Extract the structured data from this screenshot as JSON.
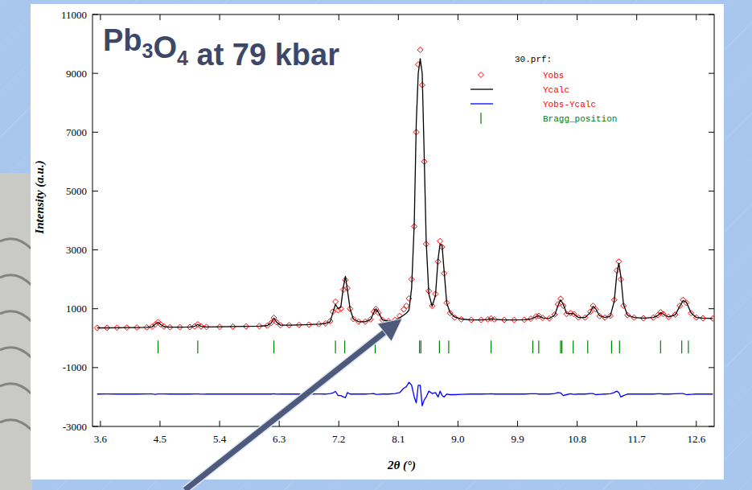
{
  "chart_data": {
    "type": "scatter",
    "title": "Pb3O4 at 79 kbar",
    "x_label": "2θ (°)",
    "y_label": "Intensity (a.u.)",
    "legend_title": "30.prf:",
    "legend": "top-right",
    "grid": false,
    "xlim": [
      3.48,
      12.87
    ],
    "ylim": [
      -3000,
      11000
    ],
    "xticks": [
      3.6,
      4.5,
      5.4,
      6.3,
      7.2,
      8.1,
      {
        "value": 9,
        "label": "9.0"
      },
      9.9,
      10.8,
      11.7,
      12.6
    ],
    "yticks": [
      -3000,
      -1000,
      1000,
      3000,
      5000,
      7000,
      9000,
      11000
    ],
    "x": [
      3.55,
      3.7,
      3.85,
      4.0,
      4.15,
      4.3,
      4.38,
      4.43,
      4.47,
      4.51,
      4.56,
      4.65,
      4.8,
      4.95,
      5.02,
      5.07,
      5.12,
      5.2,
      5.4,
      5.6,
      5.8,
      6.0,
      6.12,
      6.18,
      6.22,
      6.26,
      6.32,
      6.45,
      6.6,
      6.75,
      6.9,
      7.0,
      7.07,
      7.11,
      7.15,
      7.19,
      7.23,
      7.27,
      7.3,
      7.33,
      7.37,
      7.42,
      7.5,
      7.6,
      7.68,
      7.73,
      7.76,
      7.8,
      7.86,
      7.95,
      8.05,
      8.12,
      8.18,
      8.22,
      8.26,
      8.3,
      8.34,
      8.37,
      8.4,
      8.43,
      8.46,
      8.49,
      8.52,
      8.56,
      8.61,
      8.66,
      8.7,
      8.73,
      8.76,
      8.79,
      8.83,
      8.88,
      8.95,
      9.05,
      9.2,
      9.35,
      9.45,
      9.5,
      9.55,
      9.7,
      9.85,
      10.0,
      10.1,
      10.18,
      10.22,
      10.28,
      10.38,
      10.46,
      10.51,
      10.55,
      10.59,
      10.64,
      10.7,
      10.75,
      10.82,
      10.92,
      11.0,
      11.04,
      11.08,
      11.14,
      11.22,
      11.3,
      11.36,
      11.4,
      11.43,
      11.46,
      11.5,
      11.56,
      11.66,
      11.8,
      11.95,
      12.02,
      12.06,
      12.1,
      12.18,
      12.28,
      12.35,
      12.4,
      12.45,
      12.52,
      12.6,
      12.7,
      12.85
    ],
    "series": [
      {
        "name": "Yobs",
        "type": "scatter",
        "marker": "diamond",
        "color": "#ff0000",
        "values": [
          350,
          352,
          355,
          360,
          362,
          368,
          390,
          470,
          545,
          470,
          395,
          372,
          375,
          378,
          400,
          470,
          400,
          382,
          386,
          392,
          400,
          410,
          425,
          520,
          690,
          540,
          440,
          440,
          450,
          460,
          480,
          500,
          580,
          900,
          1240,
          950,
          1000,
          1650,
          1980,
          1700,
          1000,
          650,
          560,
          560,
          640,
          900,
          990,
          860,
          620,
          580,
          620,
          750,
          980,
          1100,
          1350,
          2000,
          3800,
          7000,
          9300,
          9800,
          8600,
          6000,
          3200,
          1600,
          1100,
          1500,
          2600,
          3300,
          3100,
          2200,
          1200,
          850,
          700,
          640,
          620,
          620,
          640,
          670,
          640,
          620,
          620,
          625,
          660,
          740,
          760,
          690,
          670,
          800,
          1150,
          1340,
          1100,
          820,
          850,
          820,
          700,
          700,
          900,
          1100,
          980,
          750,
          700,
          760,
          1300,
          2300,
          2600,
          2000,
          1100,
          780,
          700,
          680,
          700,
          780,
          880,
          820,
          720,
          800,
          1100,
          1300,
          1200,
          850,
          700,
          680,
          670
        ]
      },
      {
        "name": "Ycalc",
        "type": "line",
        "color": "#000000",
        "values": [
          350,
          350,
          355,
          360,
          362,
          366,
          385,
          480,
          540,
          465,
          390,
          372,
          375,
          378,
          398,
          465,
          402,
          382,
          386,
          392,
          400,
          410,
          425,
          520,
          680,
          545,
          440,
          440,
          450,
          460,
          478,
          500,
          560,
          860,
          1150,
          1000,
          1050,
          1750,
          2100,
          1650,
          1000,
          650,
          560,
          560,
          630,
          880,
          1000,
          870,
          620,
          580,
          600,
          700,
          780,
          850,
          950,
          1700,
          3900,
          7300,
          9000,
          9500,
          9000,
          6200,
          3300,
          1500,
          1080,
          1450,
          2700,
          3200,
          3150,
          2300,
          1200,
          870,
          720,
          650,
          620,
          620,
          635,
          660,
          640,
          620,
          620,
          625,
          650,
          730,
          760,
          690,
          670,
          780,
          1100,
          1300,
          1150,
          840,
          840,
          830,
          700,
          700,
          880,
          1080,
          1000,
          760,
          700,
          750,
          1250,
          2200,
          2550,
          2100,
          1150,
          780,
          700,
          680,
          700,
          770,
          870,
          820,
          720,
          790,
          1080,
          1280,
          1220,
          860,
          700,
          680,
          670
        ]
      },
      {
        "name": "Yobs-Ycalc",
        "type": "line",
        "color": "#0000ff",
        "values": [
          -1900,
          -1898,
          -1900,
          -1900,
          -1900,
          -1898,
          -1895,
          -1910,
          -1895,
          -1895,
          -1895,
          -1900,
          -1900,
          -1900,
          -1898,
          -1895,
          -1902,
          -1900,
          -1900,
          -1900,
          -1900,
          -1900,
          -1900,
          -1900,
          -1890,
          -1905,
          -1900,
          -1900,
          -1900,
          -1900,
          -1898,
          -1900,
          -1880,
          -1860,
          -1810,
          -1950,
          -1950,
          -2000,
          -2020,
          -1850,
          -1900,
          -1900,
          -1900,
          -1900,
          -1890,
          -1880,
          -1910,
          -1910,
          -1900,
          -1900,
          -1880,
          -1850,
          -1700,
          -1650,
          -1500,
          -1600,
          -2000,
          -2200,
          -1600,
          -1600,
          -2300,
          -2100,
          -2000,
          -1800,
          -1880,
          -1850,
          -2000,
          -1800,
          -1950,
          -2000,
          -1900,
          -1920,
          -1920,
          -1910,
          -1900,
          -1900,
          -1895,
          -1890,
          -1900,
          -1900,
          -1900,
          -1900,
          -1890,
          -1890,
          -1900,
          -1900,
          -1900,
          -1880,
          -1850,
          -1860,
          -1950,
          -1920,
          -1890,
          -1910,
          -1900,
          -1900,
          -1880,
          -1880,
          -1920,
          -1910,
          -1900,
          -1890,
          -1850,
          -1800,
          -1850,
          -2000,
          -1950,
          -1900,
          -1900,
          -1900,
          -1900,
          -1890,
          -1890,
          -1900,
          -1900,
          -1890,
          -1880,
          -1880,
          -1920,
          -1910,
          -1900,
          -1900,
          -1900
        ]
      },
      {
        "name": "Bragg_position",
        "type": "scatter",
        "marker": "vline",
        "color": "#008000",
        "x": [
          4.47,
          5.07,
          6.22,
          7.15,
          7.29,
          7.75,
          8.42,
          8.44,
          8.72,
          8.86,
          9.5,
          10.13,
          10.22,
          10.55,
          10.57,
          10.74,
          10.96,
          11.32,
          11.44,
          12.06,
          12.38,
          12.48
        ],
        "values": [
          -300,
          -300,
          -300,
          -300,
          -300,
          -300,
          -300,
          -300,
          -300,
          -300,
          -300,
          -300,
          -300,
          -300,
          -300,
          -300,
          -300,
          -300,
          -300,
          -300,
          -300,
          -300
        ]
      }
    ]
  }
}
